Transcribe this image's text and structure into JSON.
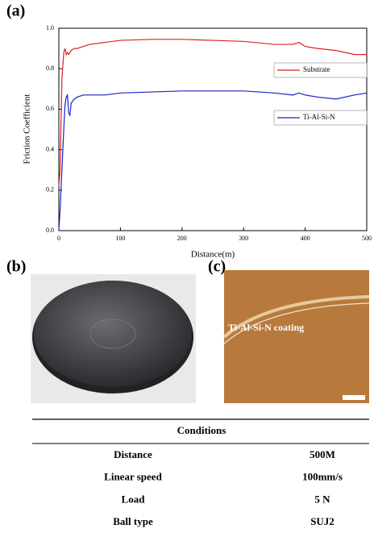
{
  "panels": {
    "a": "(a)",
    "b": "(b)",
    "c": "(c)",
    "c_label": "Ti-Al-Si-N coating"
  },
  "chart_data": {
    "type": "line",
    "x_label": "Distance(m)",
    "y_label": "Friction Coefficient",
    "x": [
      0,
      2,
      5,
      8,
      10,
      12,
      14,
      16,
      18,
      20,
      25,
      30,
      40,
      50,
      75,
      100,
      150,
      200,
      250,
      300,
      350,
      380,
      390,
      400,
      420,
      450,
      480,
      500
    ],
    "series": [
      {
        "name": "Substrate",
        "color": "#e02020",
        "values": [
          0.22,
          0.3,
          0.75,
          0.88,
          0.9,
          0.87,
          0.88,
          0.87,
          0.88,
          0.89,
          0.9,
          0.9,
          0.91,
          0.92,
          0.93,
          0.94,
          0.945,
          0.945,
          0.94,
          0.935,
          0.92,
          0.92,
          0.93,
          0.91,
          0.9,
          0.89,
          0.87,
          0.87
        ]
      },
      {
        "name": "Ti-Al-Si-N",
        "color": "#1a22c8",
        "values": [
          0.0,
          0.1,
          0.3,
          0.5,
          0.62,
          0.66,
          0.67,
          0.58,
          0.57,
          0.63,
          0.65,
          0.66,
          0.67,
          0.67,
          0.67,
          0.68,
          0.685,
          0.69,
          0.69,
          0.69,
          0.68,
          0.67,
          0.68,
          0.67,
          0.66,
          0.65,
          0.67,
          0.68
        ]
      }
    ],
    "xlim": [
      0,
      500
    ],
    "xticks": [
      0,
      100,
      200,
      300,
      400,
      500
    ],
    "ylim": [
      0,
      1
    ],
    "yticks": [
      {
        "value": 0,
        "label": "0.0"
      },
      {
        "value": 0.2,
        "label": "0.2"
      },
      {
        "value": 0.4,
        "label": "0.4"
      },
      {
        "value": 0.6,
        "label": "0.6"
      },
      {
        "value": 0.8,
        "label": "0.8"
      },
      {
        "value": 1,
        "label": "1.0"
      }
    ]
  },
  "table": {
    "header": "Conditions",
    "rows": [
      [
        "Distance",
        "500M"
      ],
      [
        "Linear speed",
        "100mm/s"
      ],
      [
        "Load",
        "5 N"
      ],
      [
        "Ball type",
        "SUJ2"
      ]
    ]
  }
}
